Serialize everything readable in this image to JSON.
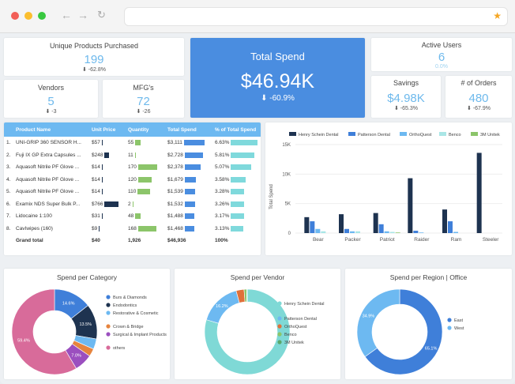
{
  "kpis": {
    "unique_products": {
      "title": "Unique Products Purchased",
      "value": "199",
      "change": "⬇ -62.8%"
    },
    "vendors": {
      "title": "Vendors",
      "value": "5",
      "change": "⬇ -3"
    },
    "mfgs": {
      "title": "MFG's",
      "value": "72",
      "change": "⬇ -26"
    },
    "total_spend": {
      "title": "Total Spend",
      "value": "$46.94K",
      "change": "⬇ -60.9%"
    },
    "active_users": {
      "title": "Active Users",
      "value": "6",
      "change": "0.0%"
    },
    "savings": {
      "title": "Savings",
      "value": "$4.98K",
      "change": "⬇ -65.3%"
    },
    "orders": {
      "title": "# of Orders",
      "value": "480",
      "change": "⬇ -67.9%"
    }
  },
  "table": {
    "headers": [
      "Product Name",
      "Unit Price",
      "Quantity",
      "Total Spend",
      "% of Total Spend"
    ],
    "rows": [
      {
        "n": "1.",
        "name": "UNI-GRIP 360 SENSOR H...",
        "price": "$57",
        "price_frac": 0.08,
        "qty": "55",
        "qty_frac": 0.3,
        "spend": "$3,111",
        "spend_frac": 1.0,
        "pct": "6.63%",
        "pct_frac": 1.0
      },
      {
        "n": "2.",
        "name": "Fuji IX GP Extra Capsules ...",
        "price": "$248",
        "price_frac": 0.3,
        "qty": "11",
        "qty_frac": 0.06,
        "spend": "$2,728",
        "spend_frac": 0.88,
        "pct": "5.81%",
        "pct_frac": 0.88
      },
      {
        "n": "3.",
        "name": "Aquasoft Nitrile PF Glove ...",
        "price": "$14",
        "price_frac": 0.02,
        "qty": "170",
        "qty_frac": 1.0,
        "spend": "$2,378",
        "spend_frac": 0.76,
        "pct": "5.07%",
        "pct_frac": 0.76
      },
      {
        "n": "4.",
        "name": "Aquasoft Nitrile PF Glove ...",
        "price": "$14",
        "price_frac": 0.02,
        "qty": "120",
        "qty_frac": 0.7,
        "spend": "$1,679",
        "spend_frac": 0.54,
        "pct": "3.58%",
        "pct_frac": 0.54
      },
      {
        "n": "5.",
        "name": "Aquasoft Nitrile PF Glove ...",
        "price": "$14",
        "price_frac": 0.02,
        "qty": "110",
        "qty_frac": 0.65,
        "spend": "$1,539",
        "spend_frac": 0.49,
        "pct": "3.28%",
        "pct_frac": 0.49
      },
      {
        "n": "6.",
        "name": "Examix NDS Super Bulk P...",
        "price": "$766",
        "price_frac": 1.0,
        "qty": "2",
        "qty_frac": 0.02,
        "spend": "$1,532",
        "spend_frac": 0.49,
        "pct": "3.26%",
        "pct_frac": 0.49
      },
      {
        "n": "7.",
        "name": "Lidocaine 1:100",
        "price": "$31",
        "price_frac": 0.04,
        "qty": "48",
        "qty_frac": 0.28,
        "spend": "$1,488",
        "spend_frac": 0.48,
        "pct": "3.17%",
        "pct_frac": 0.48
      },
      {
        "n": "8.",
        "name": "CavIwipes (160)",
        "price": "$9",
        "price_frac": 0.01,
        "qty": "168",
        "qty_frac": 0.98,
        "spend": "$1,468",
        "spend_frac": 0.47,
        "pct": "3.13%",
        "pct_frac": 0.47
      }
    ],
    "total": {
      "label": "Grand total",
      "price": "$40",
      "qty": "1,926",
      "spend": "$46,936",
      "pct": "100%"
    }
  },
  "colors": {
    "accent": "#4a8de0",
    "light": "#6db9f1",
    "navy": "#1e3350",
    "green": "#8cc56a",
    "teal": "#7fd9dc"
  },
  "chart_data": [
    {
      "type": "bar",
      "categories": [
        "Bear",
        "Packer",
        "Patriot",
        "Raider",
        "Ram",
        "Steeler"
      ],
      "series": [
        {
          "name": "Henry Schein Dental",
          "color": "#1e3350",
          "values": [
            2700,
            3200,
            3400,
            9300,
            4000,
            13600
          ]
        },
        {
          "name": "Patterson Dental",
          "color": "#3f7fd9",
          "values": [
            2000,
            700,
            1500,
            400,
            2000,
            0
          ]
        },
        {
          "name": "OrthoQuest",
          "color": "#6db9f1",
          "values": [
            700,
            300,
            300,
            100,
            200,
            0
          ]
        },
        {
          "name": "Benco",
          "color": "#a9e6e6",
          "values": [
            300,
            300,
            200,
            0,
            0,
            0
          ]
        },
        {
          "name": "3M Unitek",
          "color": "#8cc56a",
          "values": [
            0,
            0,
            100,
            0,
            0,
            0
          ]
        }
      ],
      "ylabel": "Total Spend",
      "ylim": [
        0,
        15000
      ],
      "yticks": [
        "0",
        "5K",
        "10K",
        "15K"
      ]
    },
    {
      "type": "pie",
      "title": "Spend per Category",
      "labels": [
        "Burs & Diamonds",
        "Endodontics",
        "Restorative & Cosmetic",
        "Crown & Bridge",
        "Surgical & Implant Products",
        "others"
      ],
      "values": [
        14.6,
        13.5,
        4.0,
        3.0,
        7.0,
        59.4
      ],
      "slice_labels": [
        "14.6%",
        "13.5%",
        "",
        "",
        "7.0%",
        "59.4%"
      ],
      "colors": [
        "#3f7fd9",
        "#1e3350",
        "#6db9f1",
        "#e6843e",
        "#9b4fbf",
        "#d86b9a"
      ]
    },
    {
      "type": "pie",
      "title": "Spend per Vendor",
      "labels": [
        "Henry Schein Dental",
        "Patterson Dental",
        "OrthoQuest",
        "Benco",
        "3M Unitek"
      ],
      "values": [
        79.6,
        16.2,
        3.0,
        1.0,
        0.2
      ],
      "slice_labels": [
        "",
        "16.2%",
        "",
        "",
        ""
      ],
      "colors": [
        "#7fd9d6",
        "#6db9f1",
        "#e0703a",
        "#8cc56a",
        "#5aa86a"
      ]
    },
    {
      "type": "pie",
      "title": "Spend per Region | Office",
      "labels": [
        "East",
        "West"
      ],
      "values": [
        65.1,
        34.9
      ],
      "slice_labels": [
        "65.1%",
        "34.9%"
      ],
      "colors": [
        "#3f7fd9",
        "#6db9f1"
      ]
    }
  ]
}
